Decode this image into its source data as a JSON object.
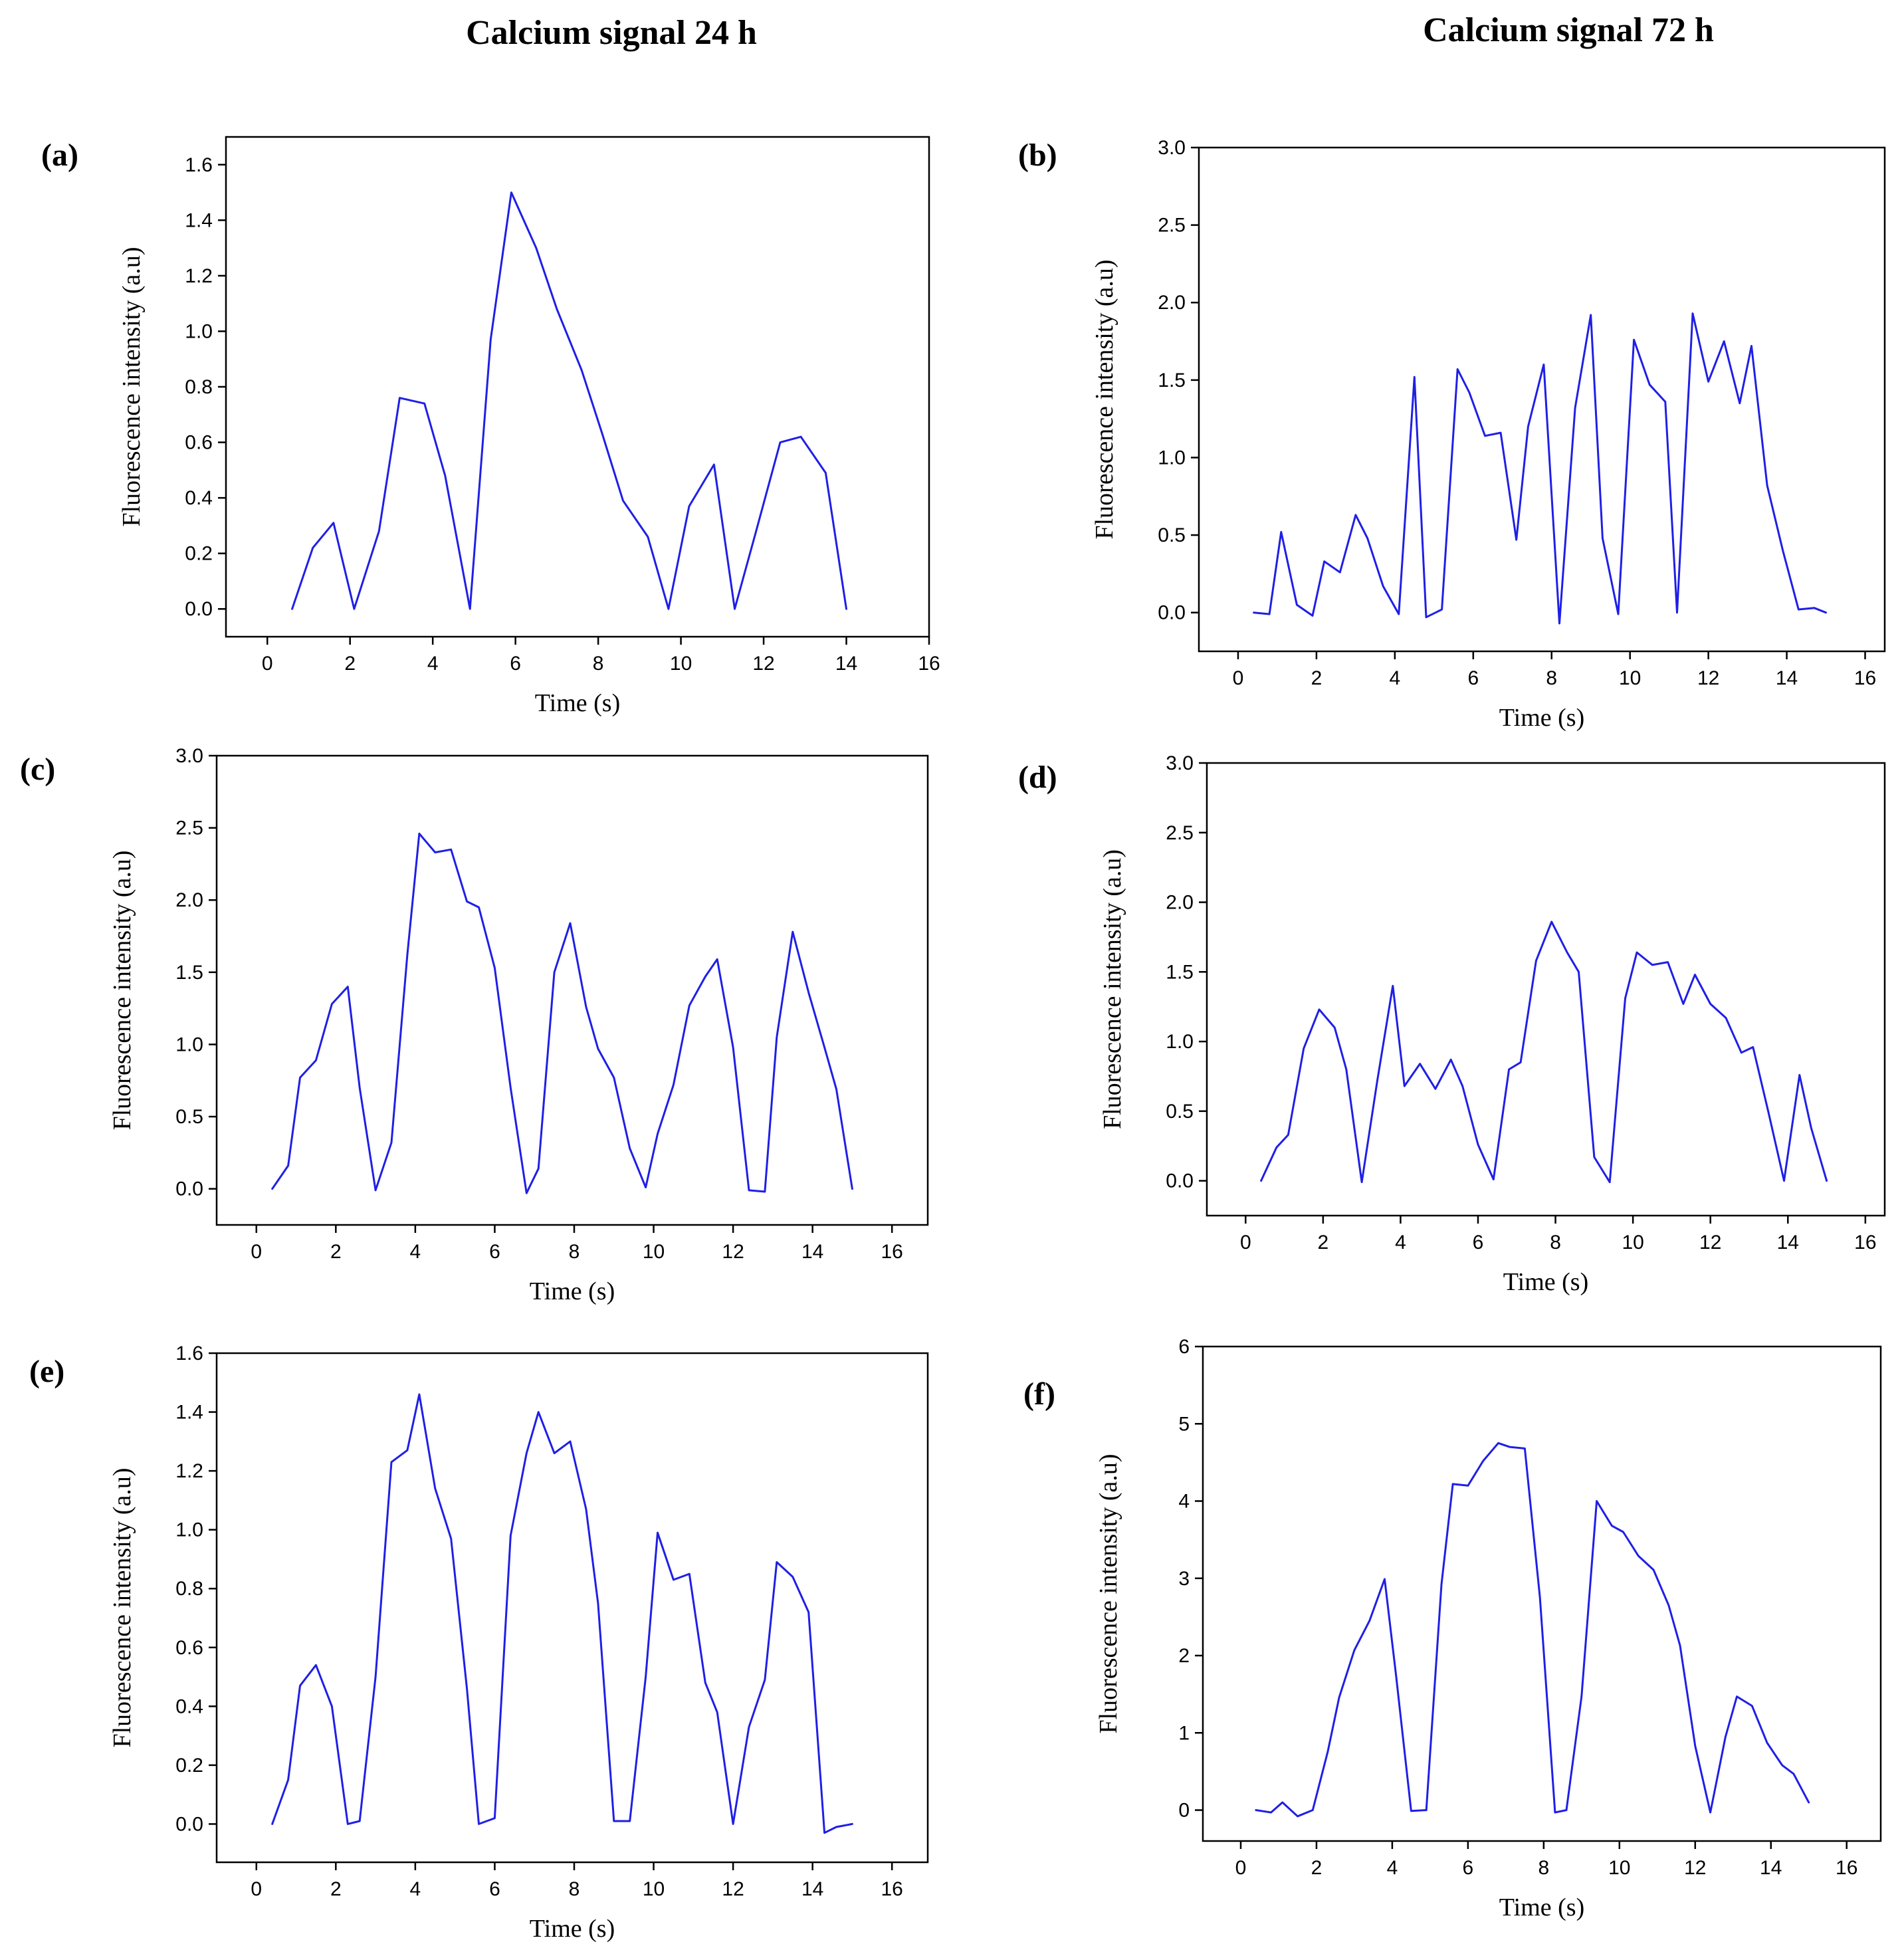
{
  "headers": {
    "left": "Calcium signal 24 h",
    "right": "Calcium signal 72 h"
  },
  "colors": {
    "line": "#1f1fe6",
    "axis": "#000000"
  },
  "chart_data": [
    {
      "id": "a",
      "panel_label": "(a)",
      "type": "line",
      "xlabel": "Time (s)",
      "ylabel": "Fluorescence intensity (a.u)",
      "xlim": [
        -1,
        16
      ],
      "ylim": [
        -0.1,
        1.7
      ],
      "xticks": [
        0,
        2,
        4,
        6,
        8,
        10,
        12,
        14,
        16
      ],
      "yticks": [
        0.0,
        0.2,
        0.4,
        0.6,
        0.8,
        1.0,
        1.2,
        1.4,
        1.6
      ],
      "ytick_labels": [
        "0.0",
        "0.2",
        "0.4",
        "0.6",
        "0.8",
        "1.0",
        "1.2",
        "1.4",
        "1.6"
      ],
      "x": [
        0.6,
        1.1,
        1.6,
        2.1,
        2.7,
        3.2,
        3.8,
        4.3,
        4.9,
        5.4,
        5.9,
        6.5,
        7.0,
        7.6,
        8.1,
        8.6,
        9.2,
        9.7,
        10.2,
        10.8,
        11.3,
        11.8,
        12.4,
        12.9,
        13.5,
        14.0
      ],
      "y": [
        0.0,
        0.22,
        0.31,
        0.0,
        0.28,
        0.76,
        0.74,
        0.48,
        0.0,
        0.97,
        1.5,
        1.3,
        1.08,
        0.86,
        0.63,
        0.39,
        0.26,
        0.0,
        0.37,
        0.52,
        0.0,
        0.27,
        0.6,
        0.62,
        0.49,
        0.0
      ]
    },
    {
      "id": "b",
      "panel_label": "(b)",
      "type": "line",
      "xlabel": "Time (s)",
      "ylabel": "Fluorescence intensity (a.u)",
      "xlim": [
        -1,
        16.5
      ],
      "ylim": [
        -0.25,
        3.0
      ],
      "xticks": [
        0,
        2,
        4,
        6,
        8,
        10,
        12,
        14,
        16
      ],
      "yticks": [
        0.0,
        0.5,
        1.0,
        1.5,
        2.0,
        2.5,
        3.0
      ],
      "ytick_labels": [
        "0.0",
        "0.5",
        "1.0",
        "1.5",
        "2.0",
        "2.5",
        "3.0"
      ],
      "x": [
        0.4,
        0.8,
        1.1,
        1.5,
        1.9,
        2.2,
        2.6,
        3.0,
        3.3,
        3.7,
        4.1,
        4.5,
        4.8,
        5.2,
        5.6,
        5.9,
        6.3,
        6.7,
        7.1,
        7.4,
        7.8,
        8.2,
        8.6,
        9.0,
        9.3,
        9.7,
        10.1,
        10.5,
        10.9,
        11.2,
        11.6,
        12.0,
        12.4,
        12.8,
        13.1,
        13.5,
        13.9,
        14.3,
        14.7,
        15.0
      ],
      "y": [
        0.0,
        -0.01,
        0.52,
        0.05,
        -0.02,
        0.33,
        0.26,
        0.63,
        0.48,
        0.17,
        -0.01,
        1.52,
        -0.03,
        0.02,
        1.57,
        1.42,
        1.14,
        1.16,
        0.47,
        1.2,
        1.6,
        -0.07,
        1.32,
        1.92,
        0.48,
        -0.01,
        1.76,
        1.47,
        1.36,
        0.0,
        1.93,
        1.49,
        1.75,
        1.35,
        1.72,
        0.82,
        0.4,
        0.02,
        0.03,
        0.0
      ]
    },
    {
      "id": "c",
      "panel_label": "(c)",
      "type": "line",
      "xlabel": "Time (s)",
      "ylabel": "Fluorescence intensity (a.u)",
      "xlim": [
        -1,
        16.9
      ],
      "ylim": [
        -0.25,
        3.0
      ],
      "xticks": [
        0,
        2,
        4,
        6,
        8,
        10,
        12,
        14,
        16
      ],
      "yticks": [
        0.0,
        0.5,
        1.0,
        1.5,
        2.0,
        2.5,
        3.0
      ],
      "ytick_labels": [
        "0.0",
        "0.5",
        "1.0",
        "1.5",
        "2.0",
        "2.5",
        "3.0"
      ],
      "x": [
        0.4,
        0.8,
        1.1,
        1.5,
        1.9,
        2.3,
        2.6,
        3.0,
        3.4,
        3.8,
        4.1,
        4.5,
        4.9,
        5.3,
        5.6,
        6.0,
        6.4,
        6.8,
        7.1,
        7.5,
        7.9,
        8.3,
        8.6,
        9.0,
        9.4,
        9.8,
        10.1,
        10.5,
        10.9,
        11.3,
        11.6,
        12.0,
        12.4,
        12.8,
        13.1,
        13.5,
        13.9,
        14.3,
        14.6,
        15.0
      ],
      "y": [
        0.0,
        0.16,
        0.77,
        0.89,
        1.28,
        1.4,
        0.7,
        -0.01,
        0.32,
        1.62,
        2.46,
        2.33,
        2.35,
        1.99,
        1.95,
        1.53,
        0.7,
        -0.03,
        0.14,
        1.5,
        1.84,
        1.26,
        0.97,
        0.77,
        0.28,
        0.01,
        0.38,
        0.72,
        1.27,
        1.47,
        1.59,
        0.98,
        -0.01,
        -0.02,
        1.05,
        1.78,
        1.36,
        0.98,
        0.69,
        0.0
      ]
    },
    {
      "id": "d",
      "panel_label": "(d)",
      "type": "line",
      "xlabel": "Time (s)",
      "ylabel": "Fluorescence intensity (a.u)",
      "xlim": [
        -1,
        16.5
      ],
      "ylim": [
        -0.25,
        3.0
      ],
      "xticks": [
        0,
        2,
        4,
        6,
        8,
        10,
        12,
        14,
        16
      ],
      "yticks": [
        0.0,
        0.5,
        1.0,
        1.5,
        2.0,
        2.5,
        3.0
      ],
      "ytick_labels": [
        "0.0",
        "0.5",
        "1.0",
        "1.5",
        "2.0",
        "2.5",
        "3.0"
      ],
      "x": [
        0.4,
        0.8,
        1.1,
        1.5,
        1.9,
        2.3,
        2.6,
        3.0,
        3.4,
        3.8,
        4.1,
        4.5,
        4.9,
        5.3,
        5.6,
        6.0,
        6.4,
        6.8,
        7.1,
        7.5,
        7.9,
        8.3,
        8.6,
        9.0,
        9.4,
        9.8,
        10.1,
        10.5,
        10.9,
        11.3,
        11.6,
        12.0,
        12.4,
        12.8,
        13.1,
        13.5,
        13.9,
        14.3,
        14.6,
        15.0
      ],
      "y": [
        0.0,
        0.24,
        0.33,
        0.95,
        1.23,
        1.1,
        0.8,
        -0.01,
        0.72,
        1.4,
        0.68,
        0.84,
        0.66,
        0.87,
        0.68,
        0.26,
        0.01,
        0.8,
        0.85,
        1.58,
        1.86,
        1.64,
        1.5,
        0.17,
        -0.01,
        1.31,
        1.64,
        1.55,
        1.57,
        1.27,
        1.48,
        1.27,
        1.17,
        0.92,
        0.96,
        0.49,
        0.0,
        0.76,
        0.38,
        0.0
      ]
    },
    {
      "id": "e",
      "panel_label": "(e)",
      "type": "line",
      "xlabel": "Time (s)",
      "ylabel": "Fluorescence intensity (a.u)",
      "xlim": [
        -1,
        16.9
      ],
      "ylim": [
        -0.13,
        1.6
      ],
      "xticks": [
        0,
        2,
        4,
        6,
        8,
        10,
        12,
        14,
        16
      ],
      "yticks": [
        0.0,
        0.2,
        0.4,
        0.6,
        0.8,
        1.0,
        1.2,
        1.4,
        1.6
      ],
      "ytick_labels": [
        "0.0",
        "0.2",
        "0.4",
        "0.6",
        "0.8",
        "1.0",
        "1.2",
        "1.4",
        "1.6"
      ],
      "x": [
        0.4,
        0.8,
        1.1,
        1.5,
        1.9,
        2.3,
        2.6,
        3.0,
        3.4,
        3.8,
        4.1,
        4.5,
        4.9,
        5.3,
        5.6,
        6.0,
        6.4,
        6.8,
        7.1,
        7.5,
        7.9,
        8.3,
        8.6,
        9.0,
        9.4,
        9.8,
        10.1,
        10.5,
        10.9,
        11.3,
        11.6,
        12.0,
        12.4,
        12.8,
        13.1,
        13.5,
        13.9,
        14.3,
        14.6,
        15.0
      ],
      "y": [
        0.0,
        0.15,
        0.47,
        0.54,
        0.4,
        0.0,
        0.01,
        0.5,
        1.23,
        1.27,
        1.46,
        1.14,
        0.97,
        0.46,
        0.0,
        0.02,
        0.98,
        1.26,
        1.4,
        1.26,
        1.3,
        1.07,
        0.75,
        0.01,
        0.01,
        0.5,
        0.99,
        0.83,
        0.85,
        0.48,
        0.38,
        0.0,
        0.33,
        0.49,
        0.89,
        0.84,
        0.72,
        -0.03,
        -0.01,
        0.0
      ]
    },
    {
      "id": "f",
      "panel_label": "(f)",
      "type": "line",
      "xlabel": "Time (s)",
      "ylabel": "Fluorescence intensity (a.u)",
      "xlim": [
        -1,
        16.9
      ],
      "ylim": [
        -0.4,
        6.0
      ],
      "xticks": [
        0,
        2,
        4,
        6,
        8,
        10,
        12,
        14,
        16
      ],
      "yticks": [
        0,
        1,
        2,
        3,
        4,
        5,
        6
      ],
      "ytick_labels": [
        "0",
        "1",
        "2",
        "3",
        "4",
        "5",
        "6"
      ],
      "x": [
        0.4,
        0.8,
        1.1,
        1.5,
        1.9,
        2.3,
        2.6,
        3.0,
        3.4,
        3.8,
        4.1,
        4.5,
        4.9,
        5.3,
        5.6,
        6.0,
        6.4,
        6.8,
        7.1,
        7.5,
        7.9,
        8.3,
        8.6,
        9.0,
        9.4,
        9.8,
        10.1,
        10.5,
        10.9,
        11.3,
        11.6,
        12.0,
        12.4,
        12.8,
        13.1,
        13.5,
        13.9,
        14.3,
        14.6,
        15.0
      ],
      "y": [
        0.0,
        -0.03,
        0.1,
        -0.08,
        0.0,
        0.76,
        1.46,
        2.07,
        2.45,
        2.99,
        1.75,
        -0.01,
        0.0,
        2.92,
        4.22,
        4.2,
        4.52,
        4.75,
        4.7,
        4.68,
        2.75,
        -0.03,
        0.0,
        1.47,
        4.0,
        3.68,
        3.6,
        3.29,
        3.11,
        2.65,
        2.13,
        0.83,
        -0.03,
        0.95,
        1.47,
        1.35,
        0.87,
        0.58,
        0.47,
        0.1
      ]
    }
  ]
}
